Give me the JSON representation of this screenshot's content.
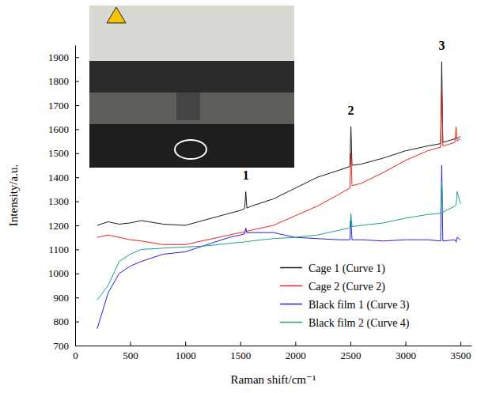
{
  "chart_data": {
    "type": "line",
    "x_label": "Raman shift/cm⁻¹",
    "y_label": "Intensity/a.u.",
    "x": [
      200,
      300,
      400,
      500,
      600,
      800,
      1000,
      1200,
      1400,
      1500,
      1540,
      1550,
      1560,
      1600,
      1800,
      2000,
      2200,
      2400,
      2495,
      2505,
      2515,
      2600,
      2800,
      3000,
      3200,
      3320,
      3330,
      3340,
      3450,
      3460,
      3470,
      3500
    ],
    "series": [
      {
        "name": "Cage 1 (Curve 1)",
        "color": "#1a1a1a",
        "values": [
          1200,
          1215,
          1205,
          1210,
          1220,
          1205,
          1200,
          1225,
          1250,
          1262,
          1270,
          1340,
          1272,
          1280,
          1310,
          1355,
          1400,
          1430,
          1445,
          1610,
          1450,
          1455,
          1480,
          1510,
          1530,
          1540,
          1880,
          1545,
          1560,
          1565,
          1560,
          1570
        ]
      },
      {
        "name": "Cage 2 (Curve 2)",
        "color": "#e8251c",
        "values": [
          1150,
          1160,
          1150,
          1140,
          1135,
          1120,
          1120,
          1140,
          1160,
          1170,
          1172,
          1180,
          1175,
          1180,
          1200,
          1240,
          1280,
          1330,
          1355,
          1500,
          1365,
          1375,
          1420,
          1470,
          1510,
          1525,
          1760,
          1530,
          1545,
          1610,
          1550,
          1560
        ]
      },
      {
        "name": "Black film 1 (Curve 3)",
        "color": "#2222d8",
        "values": [
          770,
          920,
          1000,
          1030,
          1050,
          1080,
          1090,
          1120,
          1150,
          1160,
          1165,
          1190,
          1168,
          1170,
          1170,
          1150,
          1145,
          1140,
          1140,
          1220,
          1140,
          1140,
          1135,
          1140,
          1140,
          1135,
          1450,
          1135,
          1140,
          1130,
          1150,
          1140
        ]
      },
      {
        "name": "Black film 2 (Curve 4)",
        "color": "#1f9e8c",
        "values": [
          890,
          950,
          1050,
          1080,
          1100,
          1105,
          1110,
          1115,
          1125,
          1130,
          1130,
          1135,
          1132,
          1135,
          1145,
          1150,
          1160,
          1180,
          1190,
          1250,
          1195,
          1200,
          1210,
          1230,
          1245,
          1250,
          1380,
          1255,
          1280,
          1285,
          1340,
          1290
        ]
      }
    ],
    "annotations": [
      {
        "text": "1",
        "x": 1550,
        "y": 1390
      },
      {
        "text": "2",
        "x": 2505,
        "y": 1660
      },
      {
        "text": "3",
        "x": 3330,
        "y": 1930
      }
    ],
    "xlim": [
      0,
      3600
    ],
    "xticks": [
      0,
      500,
      1000,
      1500,
      2000,
      2500,
      3000,
      3500
    ],
    "ylim": [
      700,
      1950
    ],
    "yticks": [
      700,
      800,
      900,
      1000,
      1100,
      1200,
      1300,
      1400,
      1500,
      1600,
      1700,
      1800,
      1900
    ],
    "grid": false,
    "legend": "lower right"
  }
}
